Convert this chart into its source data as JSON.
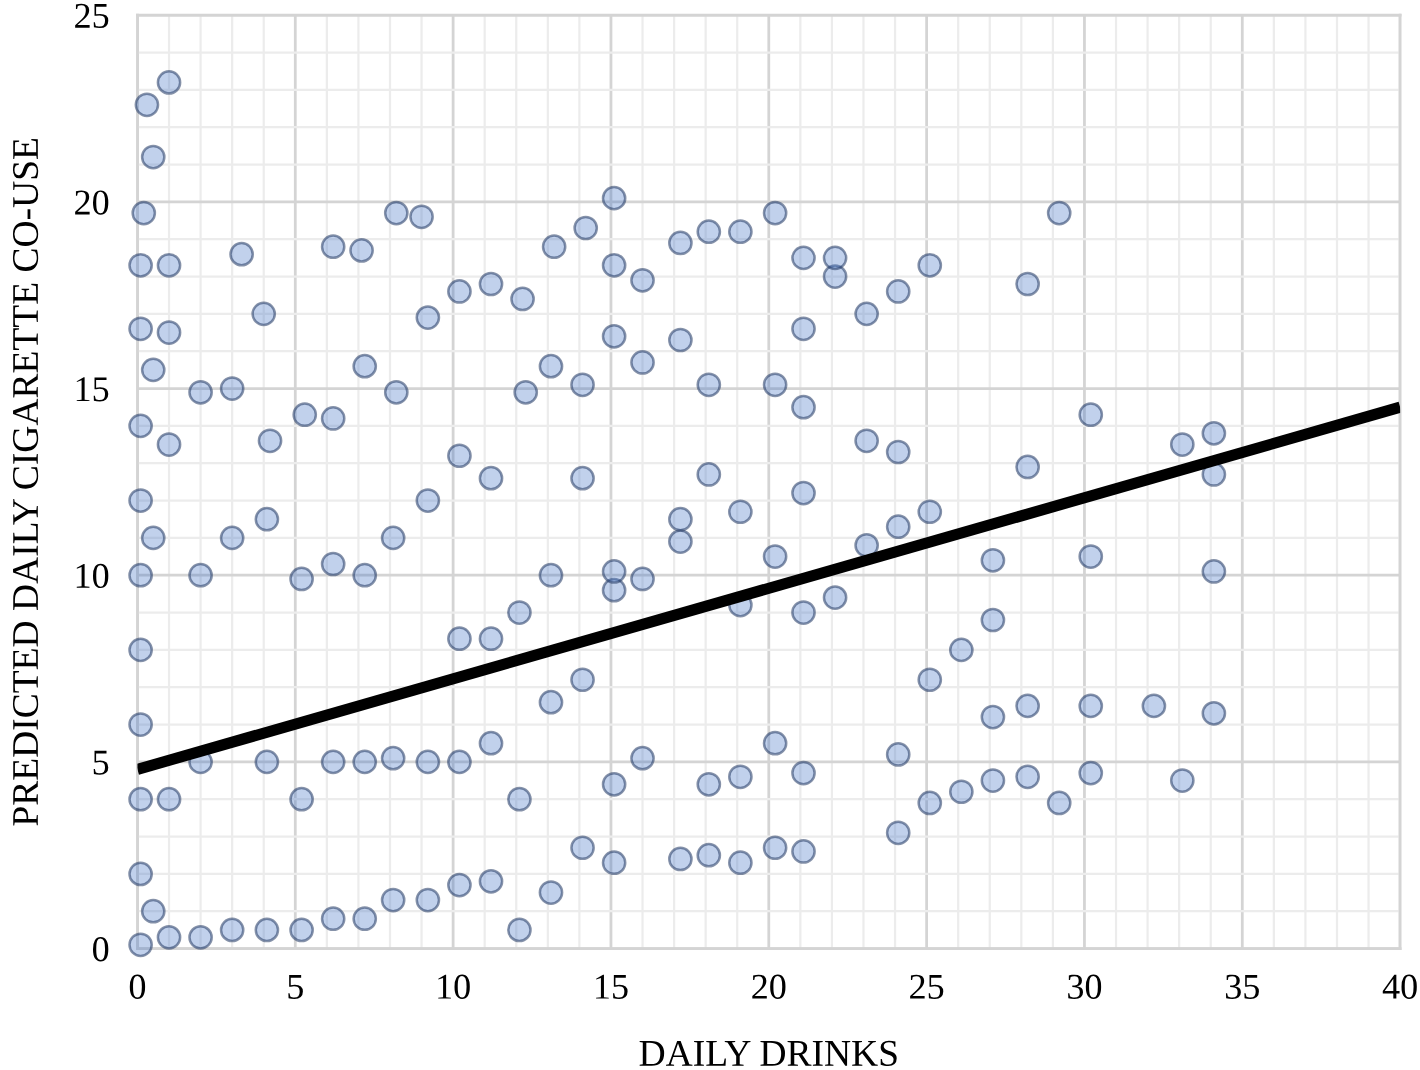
{
  "chart_data": {
    "type": "scatter",
    "xlabel": "DAILY DRINKS",
    "ylabel": "PREDICTED DAILY CIGARETTE CO-USE",
    "xlim": [
      0,
      40
    ],
    "ylim": [
      0,
      25
    ],
    "xticks": [
      0,
      {
        "value": 1,
        "label": null
      },
      {
        "value": 2,
        "label": null
      },
      {
        "value": 3,
        "label": null
      },
      {
        "value": 4,
        "label": null
      },
      5,
      {
        "value": 6,
        "label": null
      },
      {
        "value": 7,
        "label": null
      },
      {
        "value": 8,
        "label": null
      },
      {
        "value": 9,
        "label": null
      },
      10,
      {
        "value": 11,
        "label": null
      },
      {
        "value": 12,
        "label": null
      },
      {
        "value": 13,
        "label": null
      },
      {
        "value": 14,
        "label": null
      },
      15,
      {
        "value": 16,
        "label": null
      },
      {
        "value": 17,
        "label": null
      },
      {
        "value": 18,
        "label": null
      },
      {
        "value": 19,
        "label": null
      },
      20,
      {
        "value": 21,
        "label": null
      },
      {
        "value": 22,
        "label": null
      },
      {
        "value": 23,
        "label": null
      },
      {
        "value": 24,
        "label": null
      },
      25,
      {
        "value": 26,
        "label": null
      },
      {
        "value": 27,
        "label": null
      },
      {
        "value": 28,
        "label": null
      },
      {
        "value": 29,
        "label": null
      },
      30,
      {
        "value": 31,
        "label": null
      },
      {
        "value": 32,
        "label": null
      },
      {
        "value": 33,
        "label": null
      },
      {
        "value": 34,
        "label": null
      },
      35,
      {
        "value": 36,
        "label": null
      },
      {
        "value": 37,
        "label": null
      },
      {
        "value": 38,
        "label": null
      },
      {
        "value": 39,
        "label": null
      },
      40
    ],
    "yticks": [
      0,
      {
        "value": 1,
        "label": null
      },
      {
        "value": 2,
        "label": null
      },
      {
        "value": 3,
        "label": null
      },
      {
        "value": 4,
        "label": null
      },
      5,
      {
        "value": 6,
        "label": null
      },
      {
        "value": 7,
        "label": null
      },
      {
        "value": 8,
        "label": null
      },
      {
        "value": 9,
        "label": null
      },
      10,
      {
        "value": 11,
        "label": null
      },
      {
        "value": 12,
        "label": null
      },
      {
        "value": 13,
        "label": null
      },
      {
        "value": 14,
        "label": null
      },
      15,
      {
        "value": 16,
        "label": null
      },
      {
        "value": 17,
        "label": null
      },
      {
        "value": 18,
        "label": null
      },
      {
        "value": 19,
        "label": null
      },
      20,
      {
        "value": 21,
        "label": null
      },
      {
        "value": 22,
        "label": null
      },
      {
        "value": 23,
        "label": null
      },
      {
        "value": 24,
        "label": null
      },
      25
    ],
    "grid": true,
    "marker": "circle",
    "series": [
      {
        "color": "#4472c4",
        "x": [
          0.1,
          0.1,
          0.1,
          0.1,
          0.1,
          0.1,
          0.1,
          0.1,
          0.1,
          0.1,
          0.2,
          0.3,
          0.5,
          0.5,
          0.5,
          0.5,
          1.0,
          1.0,
          1.0,
          1.0,
          1.0,
          1.0,
          2.0,
          2.0,
          2.0,
          2.0,
          3.0,
          3.0,
          3.0,
          3.3,
          4.1,
          4.1,
          4.1,
          4.2,
          4.0,
          5.2,
          5.2,
          5.2,
          5.3,
          6.2,
          6.2,
          6.2,
          6.2,
          6.2,
          7.2,
          7.2,
          7.2,
          7.2,
          7.1,
          8.1,
          8.1,
          8.1,
          8.2,
          8.2,
          9.2,
          9.2,
          9.2,
          9.2,
          9.0,
          10.2,
          10.2,
          10.2,
          10.2,
          10.2,
          11.2,
          11.2,
          11.2,
          11.2,
          11.2,
          12.1,
          12.1,
          12.1,
          12.3,
          12.2,
          13.1,
          13.1,
          13.1,
          13.1,
          13.2,
          14.1,
          14.1,
          14.1,
          14.1,
          14.2,
          15.1,
          15.1,
          15.1,
          15.1,
          15.1,
          15.1,
          15.1,
          16.0,
          16.0,
          16.0,
          16.0,
          17.2,
          17.2,
          17.2,
          17.2,
          17.2,
          18.1,
          18.1,
          18.1,
          18.1,
          18.1,
          19.1,
          19.1,
          19.1,
          19.1,
          19.1,
          20.2,
          20.2,
          20.2,
          20.2,
          20.2,
          21.1,
          21.1,
          21.1,
          21.1,
          21.1,
          21.1,
          21.1,
          22.1,
          22.1,
          22.1,
          23.1,
          23.1,
          23.1,
          24.1,
          24.1,
          24.1,
          24.1,
          24.1,
          25.1,
          25.1,
          25.1,
          25.1,
          26.1,
          26.1,
          27.1,
          27.1,
          27.1,
          27.1,
          28.2,
          28.2,
          28.2,
          28.2,
          29.2,
          29.2,
          30.2,
          30.2,
          30.2,
          30.2,
          32.2,
          33.1,
          33.1,
          34.1,
          34.1,
          34.1,
          34.1
        ],
        "values": [
          0.1,
          2.0,
          4.0,
          6.0,
          8.0,
          10.0,
          12.0,
          14.0,
          16.6,
          18.3,
          19.7,
          22.6,
          1.0,
          11.0,
          15.5,
          21.2,
          0.3,
          4.0,
          13.5,
          16.5,
          18.3,
          23.2,
          0.3,
          5.0,
          10.0,
          14.9,
          0.5,
          11.0,
          15.0,
          18.6,
          0.5,
          5.0,
          11.5,
          13.6,
          17.0,
          0.5,
          4.0,
          9.9,
          14.3,
          0.8,
          5.0,
          10.3,
          14.2,
          18.8,
          0.8,
          5.0,
          10.0,
          15.6,
          18.7,
          1.3,
          5.1,
          11.0,
          14.9,
          19.7,
          1.3,
          5.0,
          12.0,
          16.9,
          19.6,
          1.7,
          5.0,
          8.3,
          13.2,
          17.6,
          1.8,
          5.5,
          8.3,
          12.6,
          17.8,
          0.5,
          4.0,
          9.0,
          14.9,
          17.4,
          1.5,
          6.6,
          10.0,
          15.6,
          18.8,
          2.7,
          7.2,
          12.6,
          15.1,
          19.3,
          2.3,
          4.4,
          9.6,
          10.1,
          16.4,
          18.3,
          20.1,
          5.1,
          9.9,
          15.7,
          17.9,
          2.4,
          10.9,
          11.5,
          16.3,
          18.9,
          2.5,
          4.4,
          12.7,
          15.1,
          19.2,
          2.3,
          4.6,
          9.2,
          11.7,
          19.2,
          2.7,
          5.5,
          10.5,
          15.1,
          19.7,
          2.6,
          4.7,
          9.0,
          12.2,
          14.5,
          16.6,
          18.5,
          9.4,
          18.0,
          18.5,
          10.8,
          13.6,
          17.0,
          3.1,
          5.2,
          11.3,
          13.3,
          17.6,
          3.9,
          7.2,
          11.7,
          18.3,
          4.2,
          8.0,
          4.5,
          6.2,
          8.8,
          10.4,
          4.6,
          6.5,
          12.9,
          17.8,
          3.9,
          19.7,
          4.7,
          6.5,
          10.5,
          14.3,
          6.5,
          4.5,
          13.5,
          6.3,
          10.1,
          12.7,
          13.8
        ]
      },
      {
        "type": "line",
        "color": "#000000",
        "x": [
          0,
          40
        ],
        "values": [
          4.8,
          14.5
        ],
        "marker": "none",
        "line_style": "solid"
      }
    ]
  }
}
